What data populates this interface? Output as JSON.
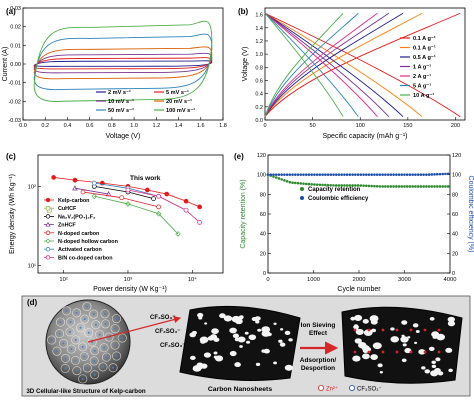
{
  "panels": {
    "a": {
      "label": "(a)",
      "xlabel": "Voltage (V)",
      "ylabel": "Current (A)",
      "xticks": [
        "0.0",
        "0.2",
        "0.4",
        "0.6",
        "0.8",
        "1.0",
        "1.2",
        "1.4",
        "1.6",
        "1.8"
      ],
      "yticks": [
        "0.03",
        "0.02",
        "0.01",
        "0.00",
        "-0.01",
        "-0.02",
        "-0.03"
      ],
      "legend": [
        {
          "name": "2 mV s⁻¹",
          "color": "#1f1f8f"
        },
        {
          "name": "5 mV s⁻¹",
          "color": "#e41a1c"
        },
        {
          "name": "10 mV s⁻¹",
          "color": "#7b3294"
        },
        {
          "name": "20 mV s⁻¹",
          "color": "#d95f02"
        },
        {
          "name": "50 mV s⁻¹",
          "color": "#2b83ba"
        },
        {
          "name": "100 mV s⁻¹",
          "color": "#4daf4a"
        }
      ]
    },
    "b": {
      "label": "(b)",
      "xlabel": "Specific capacity (mAh g⁻¹)",
      "ylabel": "Voltage (V)",
      "xticks": [
        "0",
        "50",
        "100",
        "150",
        "200"
      ],
      "yticks": [
        "1.6",
        "1.4",
        "1.2",
        "1.0",
        "0.8",
        "0.6",
        "0.4",
        "0.2",
        "0.0"
      ],
      "legend": [
        {
          "name": "0.1 A g⁻¹",
          "color": "#e41a1c"
        },
        {
          "name": "0.1 A g⁻¹",
          "color": "#ff7f0e"
        },
        {
          "name": "0.5 A g⁻¹",
          "color": "#1f1f8f"
        },
        {
          "name": "1 A g⁻¹",
          "color": "#7b3294"
        },
        {
          "name": "2 A g⁻¹",
          "color": "#e7298a"
        },
        {
          "name": "5 A g⁻¹",
          "color": "#2b83ba"
        },
        {
          "name": "10 A g⁻¹",
          "color": "#4daf4a"
        }
      ]
    },
    "c": {
      "label": "(c)",
      "xlabel": "Power density (W Kg⁻¹)",
      "ylabel": "Energy density (Wh Kg⁻¹)",
      "xticks": [
        "10²",
        "10³",
        "10⁴"
      ],
      "yticks": [
        "10²",
        "10¹"
      ],
      "annotation": "This work",
      "legend": [
        {
          "name": "Kelp-carbon",
          "color": "#e41a1c",
          "marker": "circle-filled"
        },
        {
          "name": "CuHCF",
          "color": "#8fbc3f",
          "marker": "square"
        },
        {
          "name": "Na₃V₂(PO₄)₂F₃",
          "color": "#000000",
          "marker": "circle"
        },
        {
          "name": "ZnHCF",
          "color": "#7b3294",
          "marker": "triangle"
        },
        {
          "name": "N-doped carbon",
          "color": "#e41a1c",
          "marker": "circle"
        },
        {
          "name": "N-doped hollow carbon",
          "color": "#4daf4a",
          "marker": "diamond"
        },
        {
          "name": "Activated carbon",
          "color": "#2b83ba",
          "marker": "circle"
        },
        {
          "name": "B/N co-doped carbon",
          "color": "#e7298a",
          "marker": "circle"
        }
      ]
    },
    "e": {
      "label": "(e)",
      "xlabel": "Cycle number",
      "ylabel_left": "Capacity retention (%)",
      "ylabel_right": "Coulombic efficiency (%)",
      "xticks": [
        "0",
        "1000",
        "2000",
        "3000",
        "4000"
      ],
      "yticks_left": [
        "120",
        "100",
        "80",
        "60",
        "40",
        "20",
        "0"
      ],
      "yticks_right": [
        "120",
        "100",
        "80",
        "60",
        "40",
        "20",
        "0"
      ],
      "legend": [
        {
          "name": "Capacity retention",
          "color": "#2e8b2e"
        },
        {
          "name": "Coulombic efficiency",
          "color": "#1f4fa8"
        }
      ]
    },
    "d": {
      "label": "(d)",
      "caption_left": "3D Cellular-like Structure of Kelp-carbon",
      "caption_mid": "Carbon Nanosheets",
      "arrow_top": "Ion Sieving",
      "arrow_top2": "Effect",
      "arrow_bottom": "Adsorption/",
      "arrow_bottom2": "Desportion",
      "anion_label": "CF₃SO₃⁻",
      "ion_legend_zn": "Zn²⁺",
      "ion_legend_cf": "CF₃SO₃⁻"
    }
  },
  "chart_data": [
    {
      "type": "line",
      "panel": "a",
      "xlabel": "Voltage (V)",
      "ylabel": "Current (A)",
      "xlim": [
        0.0,
        1.8
      ],
      "ylim": [
        -0.03,
        0.03
      ],
      "series": [
        {
          "name": "2 mV s⁻¹",
          "upper": 0.0015,
          "lower": -0.0012,
          "color": "#1f1f8f"
        },
        {
          "name": "5 mV s⁻¹",
          "upper": 0.003,
          "lower": -0.0025,
          "color": "#e41a1c"
        },
        {
          "name": "10 mV s⁻¹",
          "upper": 0.005,
          "lower": -0.0045,
          "color": "#7b3294"
        },
        {
          "name": "20 mV s⁻¹",
          "upper": 0.008,
          "lower": -0.0075,
          "color": "#d95f02"
        },
        {
          "name": "50 mV s⁻¹",
          "upper": 0.014,
          "lower": -0.013,
          "color": "#2b83ba"
        },
        {
          "name": "100 mV s⁻¹",
          "upper": 0.02,
          "lower": -0.019,
          "color": "#4daf4a"
        }
      ]
    },
    {
      "type": "line",
      "panel": "b",
      "xlabel": "Specific capacity (mAh g⁻¹)",
      "ylabel": "Voltage (V)",
      "xlim": [
        0,
        210
      ],
      "ylim": [
        0,
        1.7
      ],
      "series": [
        {
          "name": "0.1 A g⁻¹",
          "capacity": 205,
          "color": "#e41a1c"
        },
        {
          "name": "0.1 A g⁻¹",
          "capacity": 165,
          "color": "#ff7f0e"
        },
        {
          "name": "0.5 A g⁻¹",
          "capacity": 145,
          "color": "#1f1f8f"
        },
        {
          "name": "1 A g⁻¹",
          "capacity": 130,
          "color": "#7b3294"
        },
        {
          "name": "2 A g⁻¹",
          "capacity": 118,
          "color": "#e7298a"
        },
        {
          "name": "5 A g⁻¹",
          "capacity": 98,
          "color": "#2b83ba"
        },
        {
          "name": "10 A g⁻¹",
          "capacity": 82,
          "color": "#4daf4a"
        }
      ]
    },
    {
      "type": "scatter",
      "panel": "c",
      "xlabel": "Power density (W Kg⁻¹)",
      "ylabel": "Energy density (Wh Kg⁻¹)",
      "xscale": "log",
      "yscale": "log",
      "xlim": [
        40,
        30000
      ],
      "ylim": [
        8,
        250
      ],
      "series": [
        {
          "name": "Kelp-carbon",
          "x": [
            70,
            150,
            400,
            1000,
            2000,
            4000,
            8000,
            13000
          ],
          "y": [
            130,
            120,
            110,
            100,
            90,
            80,
            65,
            55
          ],
          "color": "#e41a1c"
        },
        {
          "name": "CuHCF",
          "x": [
            60
          ],
          "y": [
            50
          ],
          "color": "#8fbc3f"
        },
        {
          "name": "Na₃V₂(PO₄)₂F₃",
          "x": [
            300,
            1000,
            2500
          ],
          "y": [
            100,
            85,
            70
          ],
          "color": "#000000"
        },
        {
          "name": "ZnHCF",
          "x": [
            150,
            500
          ],
          "y": [
            95,
            80
          ],
          "color": "#7b3294"
        },
        {
          "name": "N-doped carbon",
          "x": [
            200,
            800,
            3000
          ],
          "y": [
            85,
            72,
            55
          ],
          "color": "#e41a1c"
        },
        {
          "name": "N-doped hollow carbon",
          "x": [
            300,
            1000,
            3000,
            6000
          ],
          "y": [
            75,
            60,
            45,
            25
          ],
          "color": "#4daf4a"
        },
        {
          "name": "Activated carbon",
          "x": [
            300,
            1000,
            3000,
            8000
          ],
          "y": [
            110,
            95,
            75,
            50
          ],
          "color": "#2b83ba"
        },
        {
          "name": "B/N co-doped carbon",
          "x": [
            1000,
            3000,
            8000,
            13000
          ],
          "y": [
            90,
            75,
            50,
            35
          ],
          "color": "#e7298a"
        }
      ]
    },
    {
      "type": "scatter",
      "panel": "e",
      "xlabel": "Cycle number",
      "xlim": [
        0,
        4000
      ],
      "ylim": [
        0,
        120
      ],
      "series": [
        {
          "name": "Capacity retention",
          "x": [
            0,
            500,
            1000,
            1500,
            2000,
            2500,
            3000,
            3500,
            4000
          ],
          "y": [
            100,
            92,
            90,
            89,
            89,
            88,
            88,
            88,
            88
          ],
          "color": "#2e8b2e"
        },
        {
          "name": "Coulombic efficiency",
          "x": [
            0,
            500,
            1000,
            1500,
            2000,
            2500,
            3000,
            3500,
            4000
          ],
          "y": [
            100,
            100,
            100,
            100,
            100,
            100,
            100,
            100,
            101
          ],
          "color": "#1f4fa8"
        }
      ]
    }
  ]
}
